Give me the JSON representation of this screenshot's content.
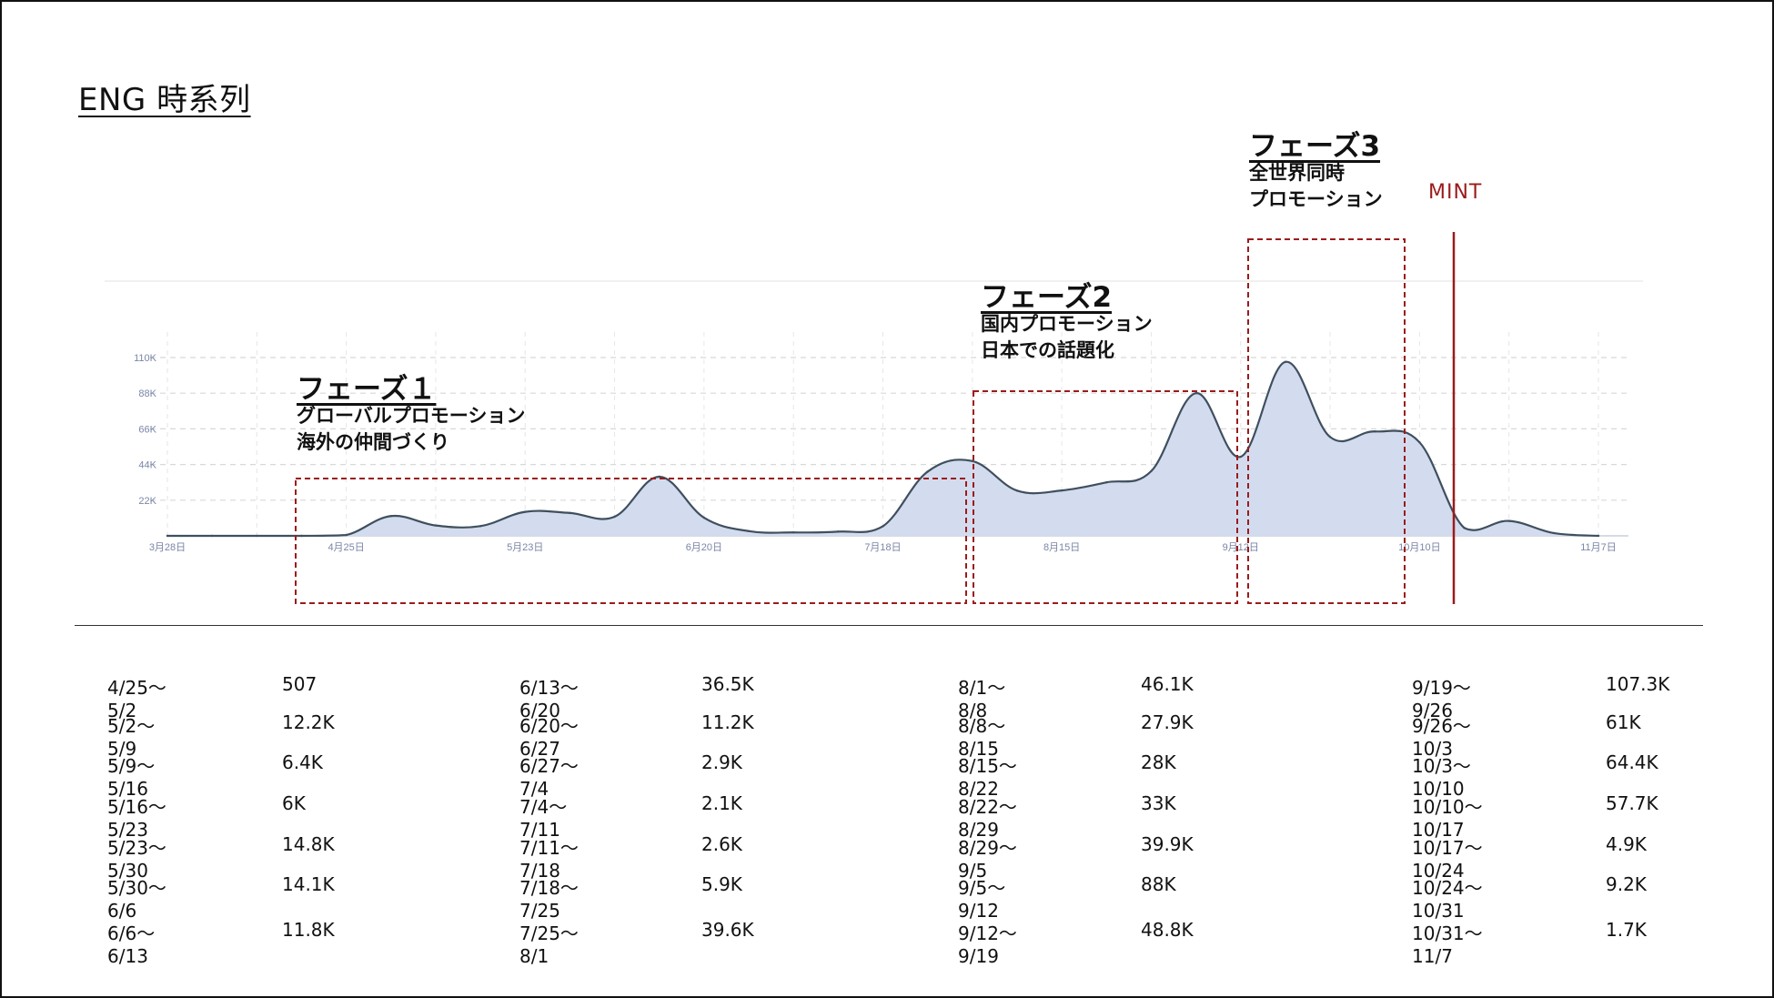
{
  "title": "ENG 時系列",
  "mint_label": "MINT",
  "phases": [
    {
      "title": "フェーズ１",
      "lines": [
        "グローバルプロモーション",
        "海外の仲間づくり"
      ]
    },
    {
      "title": "フェーズ2",
      "lines": [
        "国内プロモーション",
        "日本での話題化"
      ]
    },
    {
      "title": "フェーズ3",
      "lines": [
        "全世界同時",
        "プロモーション"
      ]
    }
  ],
  "chart_data": {
    "type": "area",
    "x_tick_labels": [
      "3月28日",
      "4月25日",
      "5月23日",
      "6月20日",
      "7月18日",
      "8月15日",
      "9月12日",
      "10月10日",
      "11月7日"
    ],
    "y_tick_labels": [
      "22K",
      "44K",
      "66K",
      "88K",
      "110K"
    ],
    "ylim": [
      0,
      110000
    ],
    "grid": true,
    "points": [
      {
        "x": "3月28日",
        "y": 0
      },
      {
        "x": "4月4日",
        "y": 0
      },
      {
        "x": "4月11日",
        "y": 0
      },
      {
        "x": "4月18日",
        "y": 0
      },
      {
        "x": "4月25日",
        "y": 507
      },
      {
        "x": "5月2日",
        "y": 12200
      },
      {
        "x": "5月9日",
        "y": 6400
      },
      {
        "x": "5月16日",
        "y": 6000
      },
      {
        "x": "5月23日",
        "y": 14800
      },
      {
        "x": "5月30日",
        "y": 14100
      },
      {
        "x": "6月6日",
        "y": 11800
      },
      {
        "x": "6月13日",
        "y": 36500
      },
      {
        "x": "6月20日",
        "y": 11200
      },
      {
        "x": "6月27日",
        "y": 2900
      },
      {
        "x": "7月4日",
        "y": 2100
      },
      {
        "x": "7月11日",
        "y": 2600
      },
      {
        "x": "7月18日",
        "y": 5900
      },
      {
        "x": "7月25日",
        "y": 39600
      },
      {
        "x": "8月1日",
        "y": 46100
      },
      {
        "x": "8月8日",
        "y": 27900
      },
      {
        "x": "8月15日",
        "y": 28000
      },
      {
        "x": "8月22日",
        "y": 33000
      },
      {
        "x": "8月29日",
        "y": 39900
      },
      {
        "x": "9月5日",
        "y": 88000
      },
      {
        "x": "9月12日",
        "y": 48800
      },
      {
        "x": "9月19日",
        "y": 107300
      },
      {
        "x": "9月26日",
        "y": 61000
      },
      {
        "x": "10月3日",
        "y": 64400
      },
      {
        "x": "10月10日",
        "y": 57700
      },
      {
        "x": "10月17日",
        "y": 4900
      },
      {
        "x": "10月24日",
        "y": 9200
      },
      {
        "x": "10月31日",
        "y": 1700
      },
      {
        "x": "11月7日",
        "y": 0
      }
    ]
  },
  "table": {
    "columns": [
      [
        {
          "range": "4/25〜5/2",
          "value": "507"
        },
        {
          "range": "5/2〜5/9",
          "value": "12.2K"
        },
        {
          "range": "5/9〜5/16",
          "value": "6.4K"
        },
        {
          "range": "5/16〜5/23",
          "value": "6K"
        },
        {
          "range": "5/23〜5/30",
          "value": "14.8K"
        },
        {
          "range": "5/30〜6/6",
          "value": "14.1K"
        },
        {
          "range": "6/6〜6/13",
          "value": "11.8K"
        }
      ],
      [
        {
          "range": "6/13〜6/20",
          "value": "36.5K"
        },
        {
          "range": "6/20〜6/27",
          "value": "11.2K"
        },
        {
          "range": "6/27〜7/4",
          "value": "2.9K"
        },
        {
          "range": "7/4〜7/11",
          "value": "2.1K"
        },
        {
          "range": "7/11〜7/18",
          "value": "2.6K"
        },
        {
          "range": "7/18〜7/25",
          "value": "5.9K"
        },
        {
          "range": "7/25〜8/1",
          "value": "39.6K"
        }
      ],
      [
        {
          "range": "8/1〜8/8",
          "value": "46.1K"
        },
        {
          "range": "8/8〜8/15",
          "value": "27.9K"
        },
        {
          "range": "8/15〜8/22",
          "value": "28K"
        },
        {
          "range": "8/22〜8/29",
          "value": "33K"
        },
        {
          "range": "8/29〜9/5",
          "value": "39.9K"
        },
        {
          "range": "9/5〜9/12",
          "value": "88K"
        },
        {
          "range": "9/12〜9/19",
          "value": "48.8K"
        }
      ],
      [
        {
          "range": "9/19〜9/26",
          "value": "107.3K"
        },
        {
          "range": "9/26〜10/3",
          "value": "61K"
        },
        {
          "range": "10/3〜10/10",
          "value": "64.4K"
        },
        {
          "range": "10/10〜10/17",
          "value": "57.7K"
        },
        {
          "range": "10/17〜10/24",
          "value": "4.9K"
        },
        {
          "range": "10/24〜10/31",
          "value": "9.2K"
        },
        {
          "range": "10/31〜11/7",
          "value": "1.7K"
        }
      ]
    ]
  },
  "colors": {
    "area_fill": "#d3dcef",
    "line": "#3f4f5e",
    "phase_box": "#9b1b1b",
    "mint": "#9b1b1b",
    "grid": "#d8d8d8",
    "axis_text": "#7a86a6"
  }
}
